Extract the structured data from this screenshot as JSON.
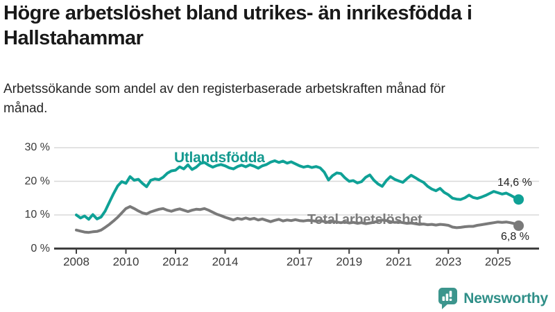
{
  "header": {
    "title": "Högre arbetslöshet bland utrikes- än inrikesfödda i Hallstahammar",
    "subtitle": "Arbetssökande som andel av den registerbaserade arbetskraften månad för månad."
  },
  "chart_data": {
    "type": "line",
    "title": "Högre arbetslöshet bland utrikes- än inrikesfödda i Hallstahammar",
    "subtitle": "Arbetssökande som andel av den registerbaserade arbetskraften månad för månad.",
    "unit": "%",
    "ylim": [
      0,
      30
    ],
    "grid": "horizontal",
    "legend": "inline-labels",
    "x_start": 2008.0,
    "x_step": 0.16667,
    "x_tick_years": [
      2008,
      2010,
      2012,
      2014,
      2017,
      2019,
      2021,
      2023,
      2025
    ],
    "x_tick_labels": [
      "2008",
      "2010",
      "2012",
      "2014",
      "2017",
      "2019",
      "2021",
      "2023",
      "2025"
    ],
    "y_ticks": [
      {
        "value": 30,
        "label": "30 %"
      },
      {
        "value": 20,
        "label": "20 %"
      },
      {
        "value": 10,
        "label": "10 %"
      },
      {
        "value": 0,
        "label": "0 %"
      }
    ],
    "series": [
      {
        "name": "Utlandsfödda",
        "color": "#0fa196",
        "end_label": "14,6 %",
        "end_value": 14.6,
        "values": [
          10.0,
          9.1,
          9.7,
          8.7,
          10.1,
          8.8,
          9.4,
          11.2,
          13.8,
          16.3,
          18.6,
          19.9,
          19.4,
          21.4,
          20.3,
          20.6,
          19.4,
          18.4,
          20.3,
          20.7,
          20.5,
          21.2,
          22.4,
          23.1,
          23.3,
          24.3,
          23.7,
          24.9,
          23.5,
          24.2,
          25.3,
          25.6,
          24.8,
          24.2,
          24.7,
          25.0,
          24.6,
          24.0,
          23.7,
          24.4,
          24.8,
          24.3,
          24.9,
          24.5,
          23.9,
          24.6,
          25.0,
          25.7,
          26.1,
          25.6,
          26.0,
          25.4,
          25.8,
          25.2,
          24.6,
          24.2,
          24.5,
          24.1,
          24.4,
          24.0,
          22.7,
          20.4,
          21.7,
          22.5,
          22.3,
          21.0,
          20.0,
          20.2,
          19.5,
          19.9,
          21.2,
          21.9,
          20.3,
          19.2,
          18.5,
          20.2,
          21.4,
          20.6,
          20.1,
          19.7,
          20.8,
          21.8,
          21.1,
          20.3,
          19.7,
          18.5,
          17.7,
          17.2,
          17.9,
          16.7,
          16.0,
          15.0,
          14.7,
          14.6,
          15.1,
          15.9,
          15.2,
          14.9,
          15.3,
          15.8,
          16.4,
          17.0,
          16.6,
          16.2,
          16.5,
          15.9,
          15.2,
          14.6
        ]
      },
      {
        "name": "Total arbetslöshet",
        "color": "#7a7a7a",
        "end_label": "6,8 %",
        "end_value": 6.8,
        "values": [
          5.5,
          5.2,
          4.9,
          4.8,
          5.0,
          5.1,
          5.5,
          6.3,
          7.2,
          8.2,
          9.3,
          10.6,
          11.9,
          12.5,
          11.9,
          11.2,
          10.6,
          10.3,
          10.9,
          11.3,
          11.7,
          11.9,
          11.4,
          11.1,
          11.5,
          11.8,
          11.4,
          11.0,
          11.4,
          11.7,
          11.6,
          11.9,
          11.4,
          10.8,
          10.2,
          9.8,
          9.3,
          8.9,
          8.5,
          9.0,
          8.7,
          9.1,
          8.7,
          9.0,
          8.5,
          8.8,
          8.4,
          8.0,
          8.4,
          8.7,
          8.2,
          8.5,
          8.3,
          8.6,
          8.3,
          8.2,
          8.4,
          8.3,
          8.1,
          8.3,
          8.0,
          7.8,
          8.1,
          7.9,
          7.7,
          7.9,
          7.6,
          7.8,
          7.5,
          7.7,
          7.4,
          7.6,
          7.8,
          8.2,
          8.5,
          8.3,
          8.0,
          7.8,
          7.9,
          7.7,
          7.5,
          7.6,
          7.4,
          7.2,
          7.3,
          7.1,
          7.2,
          7.0,
          7.2,
          7.1,
          6.9,
          6.4,
          6.2,
          6.3,
          6.5,
          6.6,
          6.6,
          6.9,
          7.1,
          7.3,
          7.5,
          7.7,
          7.9,
          7.8,
          7.9,
          7.7,
          7.4,
          6.8
        ]
      }
    ],
    "colors": {
      "grid": "#d8d8d8",
      "axis": "#3f3f3f",
      "tick_text": "#3a3a3a"
    }
  },
  "footer": {
    "brand": "Newsworthy",
    "brand_color": "#2f8f88",
    "logo_icon": "bar-chart-speech-bubble-icon"
  }
}
